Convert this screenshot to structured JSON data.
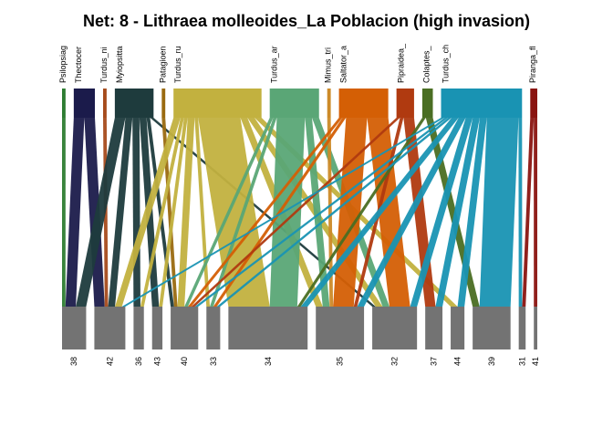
{
  "title": "Net: 8 - Lithraea molleoides_La Poblacion (high invasion)",
  "chart_data": {
    "type": "bipartite-network",
    "box_color": "#737373",
    "top_nodes": [
      {
        "label": "Psilopsiag",
        "color": "#2e7d32"
      },
      {
        "label": "Thectocer",
        "color": "#1b1b4b"
      },
      {
        "label": "Turdus_ni",
        "color": "#a64b1c"
      },
      {
        "label": "Myiopsitta",
        "color": "#1e3b3d"
      },
      {
        "label": "Patagioen",
        "color": "#9a6a10"
      },
      {
        "label": "Turdus_ru",
        "color": "#c2b13f"
      },
      {
        "label": "Turdus_ar",
        "color": "#5aa676"
      },
      {
        "label": "Mimus_tri",
        "color": "#cc8a28"
      },
      {
        "label": "Saltator_a",
        "color": "#d45f05"
      },
      {
        "label": "Pipraidea_",
        "color": "#b03a10"
      },
      {
        "label": "Colaptes_",
        "color": "#4a6e23"
      },
      {
        "label": "Turdus_ch",
        "color": "#1993b3"
      },
      {
        "label": "Piranga_fl",
        "color": "#8a1410"
      }
    ],
    "bottom_nodes": [
      "38",
      "42",
      "36",
      "43",
      "40",
      "33",
      "34",
      "35",
      "32",
      "37",
      "44",
      "39",
      "31",
      "41"
    ],
    "links": [
      {
        "from": "Psilopsiag",
        "to": "38",
        "weight": 1
      },
      {
        "from": "Thectocer",
        "to": "38",
        "weight": 3
      },
      {
        "from": "Thectocer",
        "to": "42",
        "weight": 3
      },
      {
        "from": "Turdus_ni",
        "to": "42",
        "weight": 1
      },
      {
        "from": "Myiopsitta",
        "to": "38",
        "weight": 3
      },
      {
        "from": "Myiopsitta",
        "to": "42",
        "weight": 2
      },
      {
        "from": "Myiopsitta",
        "to": "36",
        "weight": 2
      },
      {
        "from": "Myiopsitta",
        "to": "43",
        "weight": 2
      },
      {
        "from": "Myiopsitta",
        "to": "40",
        "weight": 1
      },
      {
        "from": "Myiopsitta",
        "to": "32",
        "weight": 1
      },
      {
        "from": "Patagioen",
        "to": "40",
        "weight": 1
      },
      {
        "from": "Turdus_ru",
        "to": "42",
        "weight": 2
      },
      {
        "from": "Turdus_ru",
        "to": "36",
        "weight": 1
      },
      {
        "from": "Turdus_ru",
        "to": "43",
        "weight": 1
      },
      {
        "from": "Turdus_ru",
        "to": "40",
        "weight": 2
      },
      {
        "from": "Turdus_ru",
        "to": "33",
        "weight": 1
      },
      {
        "from": "Turdus_ru",
        "to": "34",
        "weight": 12
      },
      {
        "from": "Turdus_ru",
        "to": "35",
        "weight": 2
      },
      {
        "from": "Turdus_ru",
        "to": "32",
        "weight": 2
      },
      {
        "from": "Turdus_ru",
        "to": "44",
        "weight": 2
      },
      {
        "from": "Turdus_ar",
        "to": "40",
        "weight": 1
      },
      {
        "from": "Turdus_ar",
        "to": "33",
        "weight": 1
      },
      {
        "from": "Turdus_ar",
        "to": "34",
        "weight": 8
      },
      {
        "from": "Turdus_ar",
        "to": "35",
        "weight": 2
      },
      {
        "from": "Turdus_ar",
        "to": "32",
        "weight": 2
      },
      {
        "from": "Mimus_tri",
        "to": "35",
        "weight": 1
      },
      {
        "from": "Saltator_a",
        "to": "40",
        "weight": 1
      },
      {
        "from": "Saltator_a",
        "to": "33",
        "weight": 1
      },
      {
        "from": "Saltator_a",
        "to": "35",
        "weight": 6
      },
      {
        "from": "Saltator_a",
        "to": "32",
        "weight": 6
      },
      {
        "from": "Pipraidea_",
        "to": "37",
        "weight": 3
      },
      {
        "from": "Pipraidea_",
        "to": "35",
        "weight": 1
      },
      {
        "from": "Pipraidea_",
        "to": "40",
        "weight": 1
      },
      {
        "from": "Colaptes_",
        "to": "39",
        "weight": 2
      },
      {
        "from": "Colaptes_",
        "to": "34",
        "weight": 1
      },
      {
        "from": "Turdus_ch",
        "to": "42",
        "weight": 1
      },
      {
        "from": "Turdus_ch",
        "to": "40",
        "weight": 1
      },
      {
        "from": "Turdus_ch",
        "to": "33",
        "weight": 1
      },
      {
        "from": "Turdus_ch",
        "to": "34",
        "weight": 2
      },
      {
        "from": "Turdus_ch",
        "to": "35",
        "weight": 2
      },
      {
        "from": "Turdus_ch",
        "to": "32",
        "weight": 2
      },
      {
        "from": "Turdus_ch",
        "to": "37",
        "weight": 2
      },
      {
        "from": "Turdus_ch",
        "to": "44",
        "weight": 2
      },
      {
        "from": "Turdus_ch",
        "to": "39",
        "weight": 9
      },
      {
        "from": "Turdus_ch",
        "to": "31",
        "weight": 1
      },
      {
        "from": "Piranga_fl",
        "to": "31",
        "weight": 1
      },
      {
        "from": "Piranga_fl",
        "to": "41",
        "weight": 1
      }
    ]
  }
}
